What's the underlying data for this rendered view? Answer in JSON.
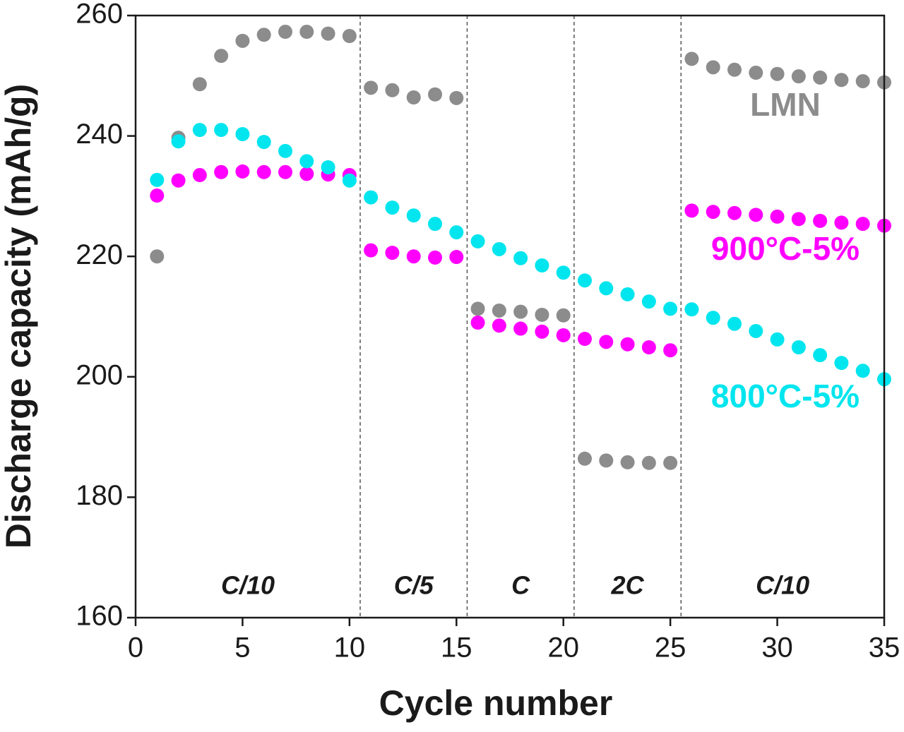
{
  "chart_data": {
    "type": "scatter",
    "x_label": "Cycle number",
    "y_label": "Discharge capacity (mAh/g)",
    "x": [
      1,
      2,
      3,
      4,
      5,
      6,
      7,
      8,
      9,
      10,
      11,
      12,
      13,
      14,
      15,
      16,
      17,
      18,
      19,
      20,
      21,
      22,
      23,
      24,
      25,
      26,
      27,
      28,
      29,
      30,
      31,
      32,
      33,
      34,
      35
    ],
    "series": [
      {
        "name": "LMN",
        "color": "#8c8c8c",
        "values": [
          220,
          239.7,
          248.6,
          253.3,
          255.8,
          256.8,
          257.3,
          257.3,
          257,
          256.6,
          248,
          247.6,
          246.4,
          246.9,
          246.3,
          211.3,
          211,
          210.8,
          210.3,
          210.2,
          186.4,
          186.1,
          185.8,
          185.7,
          185.7,
          252.8,
          251.4,
          251,
          250.5,
          250.3,
          249.9,
          249.7,
          249.3,
          249.1,
          248.9
        ]
      },
      {
        "name": "900°C-5%",
        "color": "#ff00ff",
        "values": [
          230.1,
          232.6,
          233.5,
          234,
          234.1,
          234,
          234,
          233.7,
          233.6,
          233.5,
          221,
          220.6,
          220,
          219.8,
          219.9,
          209,
          208.5,
          208,
          207.5,
          206.9,
          206.3,
          205.8,
          205.4,
          204.9,
          204.4,
          227.6,
          227.4,
          227.2,
          226.9,
          226.6,
          226.2,
          225.9,
          225.6,
          225.4,
          225.1
        ]
      },
      {
        "name": "800°C-5%",
        "color": "#00e5ee",
        "values": [
          232.7,
          239.1,
          241,
          241,
          240.3,
          239,
          237.5,
          235.8,
          234.8,
          232.6,
          229.8,
          228.1,
          226.8,
          225.4,
          224,
          222.5,
          221.2,
          219.7,
          218.5,
          217.3,
          216,
          214.7,
          213.7,
          212.5,
          211.3,
          211.2,
          209.8,
          208.8,
          207.6,
          206.2,
          204.9,
          203.6,
          202.3,
          201,
          199.6
        ]
      }
    ],
    "xlim": [
      0,
      35
    ],
    "xticks": [
      0,
      5,
      10,
      15,
      20,
      25,
      30,
      35
    ],
    "ylim": [
      160,
      260
    ],
    "yticks": [
      160,
      180,
      200,
      220,
      240,
      260
    ],
    "dividers": [
      10.5,
      15.5,
      20.5,
      25.5
    ],
    "rate_labels": [
      "C/10",
      "C/5",
      "C",
      "2C",
      "C/10"
    ]
  }
}
